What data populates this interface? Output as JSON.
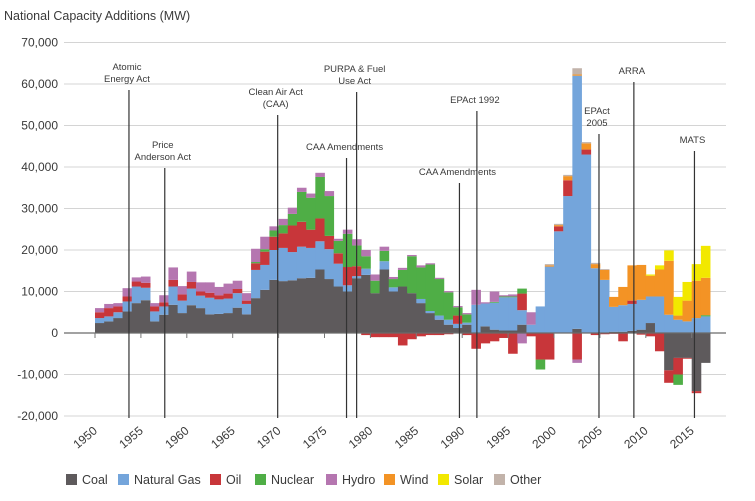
{
  "chart_data": {
    "type": "bar",
    "stacked": true,
    "title": "National Capacity Additions (MW)",
    "xlabel": "",
    "ylabel": "National Capacity Additions (MW)",
    "ylim": [
      -20000,
      70000
    ],
    "yticks": [
      70000,
      60000,
      50000,
      40000,
      30000,
      20000,
      10000,
      0,
      -10000,
      -20000
    ],
    "ytick_labels": [
      "70,000",
      "60,000",
      "50,000",
      "40,000",
      "30,000",
      "20,000",
      "10,000",
      "0",
      "-10,000",
      "-20,000"
    ],
    "xticks": [
      "1950",
      "1955",
      "1960",
      "1965",
      "1970",
      "1975",
      "1980",
      "1985",
      "1990",
      "1995",
      "2000",
      "2005",
      "2010",
      "2015"
    ],
    "grid": true,
    "legend_position": "bottom",
    "year_start": 1950,
    "year_end": 2016,
    "series": [
      {
        "name": "Coal",
        "color": "#5e5a5c",
        "values": [
          2400,
          2800,
          3600,
          5200,
          7200,
          7900,
          2800,
          4400,
          6800,
          4800,
          6700,
          6000,
          4500,
          4600,
          4800,
          6100,
          4500,
          8400,
          10400,
          12800,
          12500,
          12700,
          13200,
          13300,
          15300,
          13000,
          11200,
          10000,
          13200,
          14000,
          9600,
          15300,
          10000,
          11200,
          9600,
          7200,
          4800,
          3200,
          2000,
          1200,
          2000,
          0,
          1600,
          800,
          600,
          600,
          2000,
          0,
          0,
          0,
          0,
          0,
          1000,
          0,
          0,
          0,
          300,
          300,
          500,
          800,
          2400,
          0,
          -9000,
          -6000,
          -6000,
          -14000,
          -7200
        ]
      },
      {
        "name": "Natural Gas",
        "color": "#74a5db",
        "values": [
          1200,
          1200,
          1400,
          2400,
          4000,
          3000,
          2400,
          2000,
          4400,
          3000,
          4000,
          3000,
          4000,
          3500,
          3500,
          3500,
          2500,
          6800,
          6000,
          7200,
          8000,
          6800,
          7600,
          7200,
          6800,
          7200,
          5500,
          1500,
          500,
          1500,
          0,
          2000,
          1000,
          0,
          0,
          1000,
          500,
          1000,
          1200,
          1000,
          500,
          6800,
          5500,
          6500,
          8000,
          8000,
          3500,
          2000,
          6400,
          16000,
          24500,
          33000,
          61000,
          43000,
          15600,
          12800,
          6000,
          6400,
          6500,
          7200,
          6400,
          8800,
          4400,
          3200,
          2800,
          3600,
          4000
        ]
      },
      {
        "name": "Oil",
        "color": "#c8363a",
        "values": [
          1400,
          2000,
          1400,
          1200,
          1200,
          1200,
          1200,
          1000,
          1600,
          1500,
          1600,
          1000,
          1200,
          1000,
          1200,
          1000,
          800,
          1600,
          3200,
          3200,
          3500,
          6400,
          6000,
          4400,
          5500,
          3200,
          2500,
          4400,
          2400,
          -500,
          -1000,
          -1000,
          -1000,
          -3000,
          -1500,
          -800,
          -500,
          -500,
          -300,
          2000,
          -500,
          -3800,
          -2500,
          -2000,
          -1200,
          -5000,
          4000,
          -800,
          -6400,
          -6400,
          1200,
          3800,
          -6400,
          1200,
          -500,
          -300,
          -200,
          -2000,
          800,
          -400,
          -800,
          -4400,
          -3000,
          -4000,
          -200,
          -500,
          0
        ]
      },
      {
        "name": "Nuclear",
        "color": "#4fae46",
        "values": [
          0,
          0,
          0,
          0,
          0,
          0,
          0,
          0,
          0,
          0,
          0,
          0,
          0,
          0,
          0,
          0,
          0,
          300,
          600,
          1500,
          2000,
          2800,
          7200,
          7700,
          10000,
          9600,
          3000,
          8000,
          5000,
          3000,
          3000,
          2500,
          2000,
          4000,
          8900,
          7600,
          11200,
          8800,
          6600,
          2000,
          2000,
          0,
          0,
          200,
          200,
          200,
          1200,
          0,
          -2400,
          0,
          0,
          0,
          0,
          0,
          0,
          0,
          0,
          0,
          0,
          0,
          0,
          0,
          0,
          -2500,
          0,
          0,
          300
        ]
      },
      {
        "name": "Hydro",
        "color": "#b576b0",
        "values": [
          1000,
          1000,
          800,
          2000,
          1000,
          1500,
          800,
          1700,
          3000,
          2000,
          2500,
          2200,
          2500,
          2000,
          2400,
          2000,
          1800,
          3200,
          3000,
          1000,
          1500,
          1500,
          1000,
          1000,
          1000,
          1200,
          500,
          1000,
          1500,
          1500,
          1500,
          1000,
          500,
          500,
          300,
          500,
          300,
          300,
          300,
          300,
          300,
          3600,
          300,
          2500,
          300,
          500,
          -2500,
          3000,
          0,
          0,
          0,
          0,
          -800,
          0,
          0,
          0,
          0,
          0,
          0,
          0,
          0,
          0,
          0,
          0,
          0,
          0,
          0
        ]
      },
      {
        "name": "Wind",
        "color": "#f39325",
        "values": [
          0,
          0,
          0,
          0,
          0,
          0,
          0,
          0,
          0,
          0,
          0,
          0,
          0,
          0,
          0,
          0,
          0,
          0,
          0,
          0,
          0,
          0,
          0,
          0,
          0,
          0,
          0,
          0,
          0,
          0,
          0,
          0,
          0,
          0,
          0,
          0,
          0,
          0,
          0,
          0,
          0,
          0,
          0,
          0,
          0,
          0,
          0,
          0,
          0,
          300,
          300,
          1000,
          300,
          1500,
          1000,
          2400,
          2400,
          4400,
          8500,
          8400,
          5000,
          6500,
          13000,
          1000,
          5000,
          9000,
          9000
        ]
      },
      {
        "name": "Solar",
        "color": "#f2e800",
        "values": [
          0,
          0,
          0,
          0,
          0,
          0,
          0,
          0,
          0,
          0,
          0,
          0,
          0,
          0,
          0,
          0,
          0,
          0,
          0,
          0,
          0,
          0,
          0,
          0,
          0,
          0,
          0,
          0,
          0,
          0,
          0,
          0,
          0,
          0,
          0,
          0,
          0,
          0,
          0,
          0,
          0,
          0,
          0,
          0,
          0,
          0,
          0,
          0,
          0,
          0,
          0,
          0,
          0,
          0,
          0,
          0,
          0,
          0,
          0,
          0,
          300,
          1000,
          2500,
          4500,
          4500,
          4000,
          7700
        ]
      },
      {
        "name": "Other",
        "color": "#c2b3aa",
        "values": [
          0,
          0,
          0,
          0,
          0,
          0,
          0,
          0,
          0,
          0,
          0,
          0,
          0,
          0,
          0,
          0,
          0,
          0,
          0,
          0,
          0,
          0,
          0,
          0,
          0,
          0,
          0,
          0,
          0,
          0,
          0,
          0,
          0,
          0,
          0,
          0,
          0,
          0,
          0,
          0,
          0,
          0,
          0,
          0,
          0,
          0,
          0,
          0,
          0,
          300,
          300,
          300,
          1500,
          300,
          300,
          200,
          0,
          0,
          0,
          0,
          0,
          0,
          0,
          0,
          0,
          0,
          0
        ]
      }
    ],
    "annotations": [
      {
        "label": [
          "Atomic",
          "Energy Act"
        ],
        "year": 1953.7
      },
      {
        "label": [
          "Price",
          "Anderson Act"
        ],
        "year": 1957.6
      },
      {
        "label": [
          "Clean Air Act",
          "(CAA)"
        ],
        "year": 1969.9
      },
      {
        "label": [
          "CAA Amendments"
        ],
        "year": 1977.4
      },
      {
        "label": [
          "PURPA & Fuel",
          "Use Act"
        ],
        "year": 1978.5
      },
      {
        "label": [
          "CAA Amendments"
        ],
        "year": 1989.7
      },
      {
        "label": [
          "EPAct 1992"
        ],
        "year": 1991.6
      },
      {
        "label": [
          "EPAct",
          "2005"
        ],
        "year": 2004.9
      },
      {
        "label": [
          "ARRA"
        ],
        "year": 2008.7
      },
      {
        "label": [
          "MATS"
        ],
        "year": 2015.3
      }
    ]
  }
}
